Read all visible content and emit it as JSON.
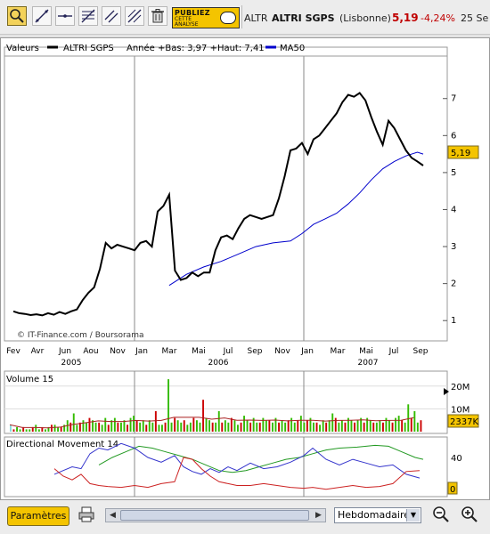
{
  "toolbar": {
    "tools": [
      "zoom-tool",
      "line-tool",
      "horizontal-line-tool",
      "fibonacci-tool",
      "parallel-tool",
      "channel-tool",
      "trash"
    ],
    "publiez": {
      "line1": "PUBLIEZ",
      "line2": "CETTE",
      "line3": "ANALYSE"
    }
  },
  "quote": {
    "code": "ALTR",
    "name": "ALTRI SGPS",
    "market": "(Lisbonne)",
    "price": "5,19",
    "change": "-4,24%",
    "date": "25 Se"
  },
  "legend": {
    "label": "Valeurs",
    "series_name": "ALTRI SGPS",
    "stats": "Année +Bas: 3,97 +Haut: 7,41",
    "ma_name": "MA50"
  },
  "price_badge": "5,19",
  "volume": {
    "title": "Volume 15",
    "badge": "2337K"
  },
  "dm": {
    "title": "Directional Movement 14"
  },
  "bottom": {
    "params_label": "Paramètres",
    "period": "Hebdomadaire"
  },
  "credit": "© IT-Finance.com / Boursorama",
  "colors": {
    "price": "#000000",
    "ma": "#0000cc",
    "vol_up": "#33bb00",
    "vol_down": "#cc0000",
    "badge": "#f4c400",
    "dm_plus": "#3333cc",
    "dm_minus": "#cc2222",
    "adx": "#229922"
  },
  "chart_data": [
    {
      "type": "line",
      "title": "ALTRI SGPS",
      "x_ticks": [
        "Fev",
        "Avr",
        "Jun",
        "Aou",
        "Nov",
        "Jan",
        "Mar",
        "Mai",
        "Jul",
        "Sep",
        "Nov",
        "Jan",
        "Mar",
        "Mai",
        "Jul",
        "Sep"
      ],
      "year_labels": [
        "2005",
        "2006",
        "2007"
      ],
      "y_ticks": [
        1,
        2,
        3,
        4,
        5,
        6,
        7
      ],
      "ylim": [
        0.5,
        8.1
      ],
      "series": [
        {
          "name": "ALTRI SGPS",
          "x": [
            0,
            2,
            4,
            6,
            8,
            10,
            12,
            14,
            16,
            18,
            20,
            22,
            24,
            26,
            28,
            30,
            32,
            34,
            36,
            38,
            40,
            42,
            44,
            46,
            48,
            50,
            52,
            54,
            56,
            58,
            60,
            62,
            64,
            66,
            68,
            70,
            72,
            74,
            76,
            78,
            80,
            82,
            84,
            86,
            88,
            90,
            92,
            94,
            96,
            98,
            100,
            102,
            104,
            106,
            108,
            110,
            112,
            114,
            116,
            118,
            120,
            122,
            124,
            126,
            128,
            130,
            132,
            134,
            136,
            138,
            140,
            142
          ],
          "y": [
            1.25,
            1.2,
            1.18,
            1.15,
            1.17,
            1.14,
            1.2,
            1.16,
            1.23,
            1.18,
            1.25,
            1.3,
            1.55,
            1.75,
            1.9,
            2.4,
            3.1,
            2.95,
            3.05,
            3.0,
            2.95,
            2.9,
            3.1,
            3.15,
            3.0,
            3.95,
            4.1,
            4.4,
            2.35,
            2.1,
            2.15,
            2.3,
            2.2,
            2.3,
            2.3,
            2.9,
            3.25,
            3.3,
            3.2,
            3.5,
            3.75,
            3.85,
            3.8,
            3.75,
            3.8,
            3.85,
            4.3,
            4.9,
            5.6,
            5.65,
            5.8,
            5.5,
            5.9,
            6.0,
            6.2,
            6.4,
            6.6,
            6.9,
            7.1,
            7.05,
            7.15,
            6.95,
            6.5,
            6.1,
            5.75,
            6.4,
            6.2,
            5.9,
            5.6,
            5.4,
            5.3,
            5.19
          ]
        },
        {
          "name": "MA50",
          "x": [
            54,
            60,
            66,
            72,
            78,
            84,
            90,
            96,
            100,
            104,
            108,
            112,
            116,
            120,
            124,
            128,
            132,
            136,
            140,
            142
          ],
          "y": [
            1.95,
            2.25,
            2.45,
            2.6,
            2.8,
            3.0,
            3.1,
            3.15,
            3.35,
            3.6,
            3.75,
            3.9,
            4.15,
            4.45,
            4.8,
            5.1,
            5.3,
            5.45,
            5.55,
            5.5
          ]
        }
      ]
    },
    {
      "type": "bar",
      "title": "Volume 15",
      "y_ticks": [
        "10M",
        "20M"
      ],
      "ylim": [
        0,
        25
      ],
      "values": [
        3,
        1,
        2,
        1,
        2,
        1,
        1,
        2,
        3,
        1,
        2,
        1,
        2,
        3,
        3,
        2,
        2,
        3,
        5,
        4,
        8,
        3,
        4,
        5,
        4,
        6,
        5,
        4,
        4,
        3,
        6,
        3,
        5,
        6,
        4,
        4,
        5,
        3,
        6,
        7,
        5,
        4,
        5,
        3,
        5,
        4,
        9,
        3,
        3,
        4,
        23,
        4,
        6,
        5,
        4,
        5,
        3,
        4,
        6,
        5,
        4,
        14,
        6,
        5,
        4,
        4,
        9,
        4,
        5,
        4,
        6,
        5,
        3,
        4,
        7,
        5,
        4,
        6,
        4,
        4,
        6,
        5,
        5,
        4,
        6,
        4,
        5,
        4,
        5,
        6,
        4,
        5,
        7,
        4,
        5,
        6,
        4,
        4,
        3,
        5,
        4,
        5,
        8,
        6,
        4,
        5,
        4,
        6,
        5,
        4,
        5,
        6,
        4,
        6,
        5,
        4,
        4,
        5,
        4,
        6,
        5,
        4,
        6,
        7,
        5,
        4,
        12,
        6,
        9,
        4,
        5
      ]
    },
    {
      "type": "line",
      "title": "Directional Movement 14",
      "y_ticks": [
        0,
        40
      ],
      "ylim": [
        0,
        60
      ]
    }
  ]
}
